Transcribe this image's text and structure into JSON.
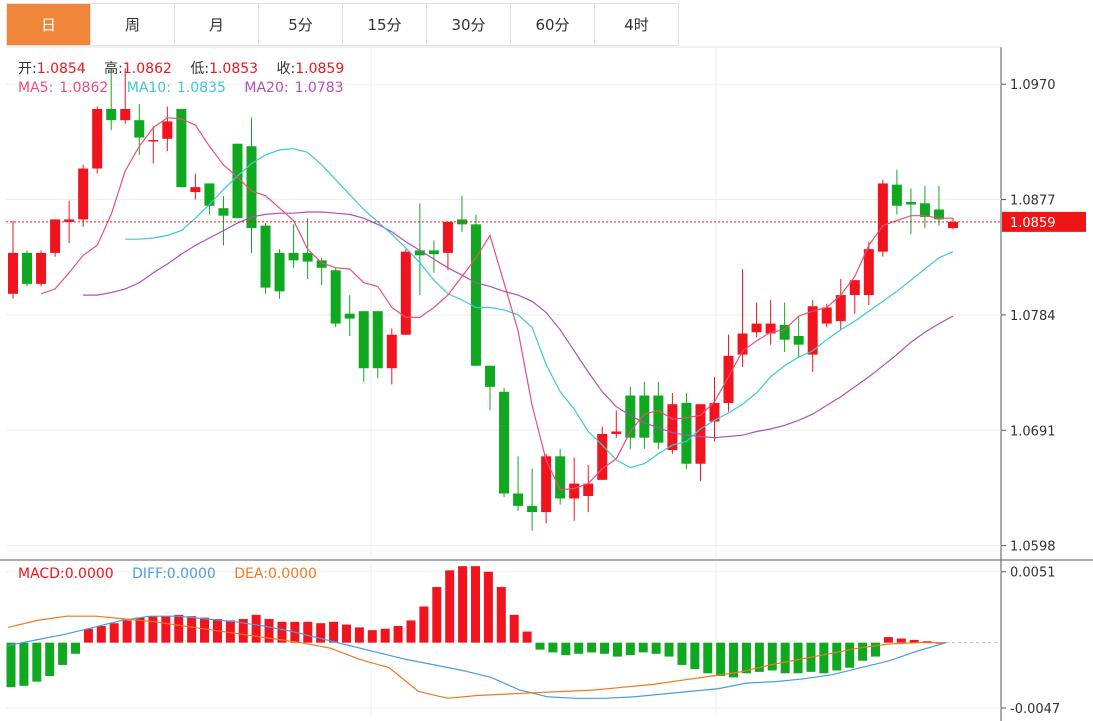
{
  "tabs": [
    {
      "label": "日",
      "active": true
    },
    {
      "label": "周"
    },
    {
      "label": "月"
    },
    {
      "label": "5分"
    },
    {
      "label": "15分"
    },
    {
      "label": "30分"
    },
    {
      "label": "60分"
    },
    {
      "label": "4时"
    }
  ],
  "ohlc_info": {
    "open_label": "开:",
    "open": "1.0854",
    "high_label": "高:",
    "high": "1.0862",
    "low_label": "低:",
    "low": "1.0853",
    "close_label": "收:",
    "close": "1.0859"
  },
  "ma_info": {
    "ma5_label": "MA5:",
    "ma5": "1.0862",
    "ma10_label": "MA10:",
    "ma10": "1.0835",
    "ma20_label": "MA20:",
    "ma20": "1.0783"
  },
  "macd_info": {
    "macd_label": "MACD:",
    "macd": "0.0000",
    "diff_label": "DIFF:",
    "diff": "0.0000",
    "dea_label": "DEA:",
    "dea": "0.0000"
  },
  "colors": {
    "up": "#f0141e",
    "down": "#10a820",
    "ma5": "#e84f7a",
    "ma10": "#3cc8d8",
    "ma20": "#b050b8",
    "diff": "#4a9ee0",
    "dea": "#f07820",
    "price_tag": "#f01414",
    "grid": "#ededed"
  },
  "chart_data": [
    {
      "type": "candlestick",
      "ylim": [
        1.0588,
        1.1
      ],
      "y_ticks": [
        "1.0970",
        "1.0877",
        "1.0784",
        "1.0691",
        "1.0598"
      ],
      "last_price": "1.0859",
      "candles": [
        [
          1.0801,
          1.0834,
          1.086,
          1.0797
        ],
        [
          1.0834,
          1.0809,
          1.0836,
          1.0807
        ],
        [
          1.0809,
          1.0834,
          1.0836,
          1.0807
        ],
        [
          1.0834,
          1.0861,
          1.0861,
          1.0831
        ],
        [
          1.0859,
          1.0861,
          1.0876,
          1.0842
        ],
        [
          1.0861,
          1.0902,
          1.0905,
          1.0855
        ],
        [
          1.0902,
          1.095,
          1.0952,
          1.0898
        ],
        [
          1.095,
          1.0941,
          1.0983,
          1.0933
        ],
        [
          1.0941,
          1.095,
          1.0983,
          1.0938
        ],
        [
          1.0941,
          1.0927,
          1.0954,
          1.0913
        ],
        [
          1.0925,
          1.0925,
          1.0936,
          1.0906
        ],
        [
          1.0926,
          1.094,
          1.0952,
          1.0916
        ],
        [
          1.095,
          1.0887,
          1.095,
          1.0887
        ],
        [
          1.0883,
          1.0887,
          1.0898,
          1.0877
        ],
        [
          1.089,
          1.0872,
          1.089,
          1.0865
        ],
        [
          1.087,
          1.0864,
          1.088,
          1.084
        ],
        [
          1.0922,
          1.0862,
          1.0922,
          1.0862
        ],
        [
          1.092,
          1.0854,
          1.0943,
          1.0834
        ],
        [
          1.0856,
          1.0806,
          1.0858,
          1.0801
        ],
        [
          1.0834,
          1.0803,
          1.0837,
          1.0797
        ],
        [
          1.0834,
          1.0828,
          1.0857,
          1.0822
        ],
        [
          1.0834,
          1.0827,
          1.0862,
          1.0813
        ],
        [
          1.0828,
          1.0822,
          1.083,
          1.0808
        ],
        [
          1.082,
          1.0777,
          1.0822,
          1.0774
        ],
        [
          1.0785,
          1.0781,
          1.08,
          1.0767
        ],
        [
          1.0787,
          1.0741,
          1.0787,
          1.073
        ],
        [
          1.0787,
          1.0741,
          1.0787,
          1.0733
        ],
        [
          1.0741,
          1.0768,
          1.0773,
          1.0728
        ],
        [
          1.0768,
          1.0835,
          1.0837,
          1.0768
        ],
        [
          1.0836,
          1.0832,
          1.0874,
          1.08
        ],
        [
          1.0836,
          1.0833,
          1.0844,
          1.0818
        ],
        [
          1.0834,
          1.0859,
          1.0859,
          1.082
        ],
        [
          1.0861,
          1.0857,
          1.088,
          1.0851
        ],
        [
          1.0857,
          1.0743,
          1.0865,
          1.0743
        ],
        [
          1.0743,
          1.0726,
          1.0743,
          1.0707
        ],
        [
          1.0722,
          1.064,
          1.0725,
          1.0637
        ],
        [
          1.064,
          1.063,
          1.067,
          1.0626
        ],
        [
          1.063,
          1.0625,
          1.066,
          1.061
        ],
        [
          1.0625,
          1.067,
          1.0672,
          1.0616
        ],
        [
          1.067,
          1.0636,
          1.0676,
          1.0631
        ],
        [
          1.0636,
          1.0648,
          1.0669,
          1.0618
        ],
        [
          1.0638,
          1.0648,
          1.0663,
          1.0625
        ],
        [
          1.0651,
          1.0688,
          1.0694,
          1.0651
        ],
        [
          1.0688,
          1.069,
          1.0707,
          1.0685
        ],
        [
          1.0719,
          1.0685,
          1.0726,
          1.0676
        ],
        [
          1.0719,
          1.0685,
          1.073,
          1.0676
        ],
        [
          1.0719,
          1.0681,
          1.073,
          1.0676
        ],
        [
          1.0675,
          1.0712,
          1.0721,
          1.0672
        ],
        [
          1.0713,
          1.0664,
          1.0721,
          1.066
        ],
        [
          1.0664,
          1.0712,
          1.0712,
          1.065
        ],
        [
          1.0698,
          1.0713,
          1.0734,
          1.0682
        ],
        [
          1.0713,
          1.0751,
          1.0768,
          1.0706
        ],
        [
          1.0752,
          1.0769,
          1.0821,
          1.0742
        ],
        [
          1.077,
          1.0777,
          1.0794,
          1.0766
        ],
        [
          1.0769,
          1.0777,
          1.0796,
          1.076
        ],
        [
          1.0776,
          1.0764,
          1.0794,
          1.0754
        ],
        [
          1.0767,
          1.076,
          1.0783,
          1.0749
        ],
        [
          1.0752,
          1.0791,
          1.0796,
          1.0738
        ],
        [
          1.0777,
          1.079,
          1.0793,
          1.0774
        ],
        [
          1.0779,
          1.08,
          1.0813,
          1.0772
        ],
        [
          1.08,
          1.0812,
          1.0812,
          1.0785
        ],
        [
          1.08,
          1.0837,
          1.0843,
          1.0792
        ],
        [
          1.0835,
          1.089,
          1.0893,
          1.0831
        ],
        [
          1.0889,
          1.0872,
          1.0901,
          1.0865
        ],
        [
          1.0875,
          1.0873,
          1.0886,
          1.0849
        ],
        [
          1.0874,
          1.0863,
          1.0888,
          1.0854
        ],
        [
          1.0869,
          1.0861,
          1.0888,
          1.0856
        ],
        [
          1.0854,
          1.0859,
          1.0862,
          1.0853
        ]
      ],
      "ma5": [
        1.0801,
        1.0805,
        1.0818,
        1.0832,
        1.084,
        1.0865,
        1.09,
        1.092,
        1.0935,
        1.0943,
        1.0942,
        1.0937,
        1.092,
        1.0905,
        1.0895,
        1.0884,
        1.088,
        1.087,
        1.086,
        1.0837,
        1.0826,
        1.0822,
        1.0821,
        1.081,
        1.0807,
        1.079,
        1.0782,
        1.0782,
        1.079,
        1.08,
        1.0815,
        1.083,
        1.0848,
        1.081,
        1.0771,
        1.0711,
        1.0667,
        1.0643,
        1.0644,
        1.0648,
        1.066,
        1.0668,
        1.069,
        1.0704,
        1.0707,
        1.07,
        1.0701,
        1.0703,
        1.0714,
        1.0734,
        1.0755,
        1.0763,
        1.077,
        1.0772,
        1.0783,
        1.0787,
        1.079,
        1.08,
        1.0815,
        1.084,
        1.0856,
        1.086,
        1.0864,
        1.0864,
        1.0862,
        1.0862
      ],
      "ma10": [
        1.0845,
        1.0845,
        1.0846,
        1.0848,
        1.0852,
        1.0862,
        1.0873,
        1.0885,
        1.0896,
        1.0906,
        1.0913,
        1.0917,
        1.0918,
        1.0915,
        1.0905,
        1.0893,
        1.0881,
        1.0869,
        1.0859,
        1.0849,
        1.0838,
        1.0826,
        1.0812,
        1.0801,
        1.0796,
        1.079,
        1.079,
        1.0788,
        1.0784,
        1.0774,
        1.0744,
        1.0722,
        1.0708,
        1.069,
        1.0679,
        1.0667,
        1.0661,
        1.0664,
        1.0672,
        1.0679,
        1.0682,
        1.0692,
        1.0699,
        1.0705,
        1.0712,
        1.0721,
        1.0734,
        1.0743,
        1.075,
        1.0755,
        1.0764,
        1.0772,
        1.0779,
        1.0787,
        1.0795,
        1.0803,
        1.0812,
        1.0821,
        1.083,
        1.0835
      ],
      "ma20": [
        1.08,
        1.08,
        1.0802,
        1.0805,
        1.081,
        1.0818,
        1.0825,
        1.0833,
        1.084,
        1.0846,
        1.0852,
        1.0858,
        1.0863,
        1.0865,
        1.0866,
        1.0866,
        1.0867,
        1.0867,
        1.0866,
        1.0865,
        1.0862,
        1.0857,
        1.0851,
        1.0843,
        1.0836,
        1.0829,
        1.0822,
        1.0816,
        1.081,
        1.0807,
        1.0803,
        1.08,
        1.0795,
        1.0786,
        1.0772,
        1.0755,
        1.0738,
        1.0722,
        1.071,
        1.0703,
        1.0697,
        1.0693,
        1.0689,
        1.0687,
        1.0686,
        1.0685,
        1.0686,
        1.0687,
        1.069,
        1.0692,
        1.0695,
        1.0699,
        1.0704,
        1.0711,
        1.0718,
        1.0726,
        1.0734,
        1.0743,
        1.0752,
        1.0762,
        1.077,
        1.0777,
        1.0783
      ]
    },
    {
      "type": "bar",
      "name": "MACD",
      "ylim": [
        -0.0052,
        0.0058
      ],
      "y_ticks": [
        "0.0051",
        "-0.0047"
      ],
      "macd": [
        -0.0032,
        -0.0031,
        -0.0028,
        -0.0024,
        -0.0016,
        -0.0008,
        0.001,
        0.0012,
        0.0014,
        0.0016,
        0.0018,
        0.0019,
        0.0019,
        0.002,
        0.0019,
        0.0018,
        0.0017,
        0.0016,
        0.0017,
        0.002,
        0.0017,
        0.0015,
        0.0015,
        0.0015,
        0.0014,
        0.0015,
        0.0013,
        0.0011,
        0.0009,
        0.001,
        0.0012,
        0.0016,
        0.0026,
        0.004,
        0.0052,
        0.0055,
        0.0055,
        0.0051,
        0.004,
        0.002,
        0.0008,
        -0.0005,
        -0.0007,
        -0.0009,
        -0.0008,
        -0.0007,
        -0.0008,
        -0.001,
        -0.0009,
        -0.0007,
        -0.0008,
        -0.001,
        -0.0016,
        -0.0019,
        -0.0022,
        -0.0024,
        -0.0025,
        -0.0022,
        -0.0021,
        -0.002,
        -0.0022,
        -0.0022,
        -0.0021,
        -0.0022,
        -0.002,
        -0.0018,
        -0.0013,
        -0.001,
        0.0004,
        0.0003,
        0.0002,
        0.0001,
        0.0
      ],
      "diff": [
        -0.0002,
        0.0002,
        0.0006,
        0.0011,
        0.0016,
        0.0019,
        0.0019,
        0.0017,
        0.0015,
        0.0012,
        0.0008,
        0.0003,
        -0.0002,
        -0.0007,
        -0.0012,
        -0.0016,
        -0.002,
        -0.0025,
        -0.0034,
        -0.0039,
        -0.004,
        -0.004,
        -0.0039,
        -0.0037,
        -0.0035,
        -0.0033,
        -0.0029,
        -0.0028,
        -0.0026,
        -0.0023,
        -0.0018,
        -0.0013,
        -0.0006,
        0.0
      ],
      "dea": [
        0.0011,
        0.0016,
        0.0019,
        0.0019,
        0.0017,
        0.0015,
        0.0012,
        0.0009,
        0.0006,
        0.0003,
        0.0,
        -0.0004,
        -0.0012,
        -0.0018,
        -0.0035,
        -0.004,
        -0.0038,
        -0.0037,
        -0.0036,
        -0.0035,
        -0.0034,
        -0.0032,
        -0.003,
        -0.0027,
        -0.0024,
        -0.0021,
        -0.0016,
        -0.0012,
        -0.0008,
        -0.0004,
        -0.0001,
        0.0,
        0.0
      ]
    }
  ]
}
